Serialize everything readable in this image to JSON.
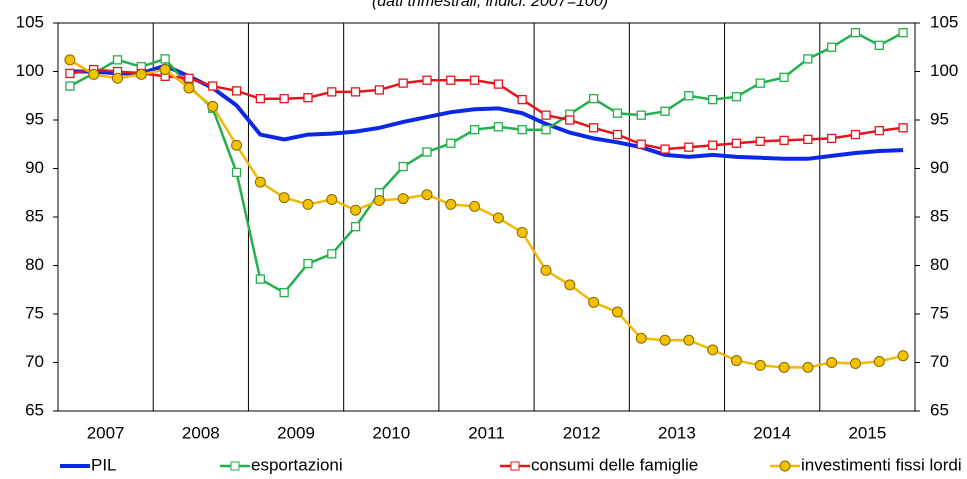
{
  "chart_data": {
    "type": "line",
    "subtitle": "(dati trimestrali; indici: 2007=100)",
    "categories": [
      null,
      "2007",
      null,
      null,
      null,
      "2008",
      null,
      null,
      null,
      "2009",
      null,
      null,
      null,
      "2010",
      null,
      null,
      null,
      "2011",
      null,
      null,
      null,
      "2012",
      null,
      null,
      null,
      "2013",
      null,
      null,
      null,
      "2014",
      null,
      null,
      null,
      "2015",
      null,
      null
    ],
    "ylim": [
      65,
      105
    ],
    "yticks": [
      65,
      70,
      75,
      80,
      85,
      90,
      95,
      100,
      105
    ],
    "y2lim": [
      65,
      105
    ],
    "y2ticks": [
      65,
      70,
      75,
      80,
      85,
      90,
      95,
      100,
      105
    ],
    "series": [
      {
        "name": "PIL",
        "color": "#0a28e6",
        "marker": "none",
        "values": [
          100.0,
          100.0,
          99.8,
          99.8,
          100.6,
          99.5,
          98.3,
          96.5,
          93.5,
          93.0,
          93.5,
          93.6,
          93.8,
          94.2,
          94.8,
          95.3,
          95.8,
          96.1,
          96.2,
          95.7,
          94.6,
          93.7,
          93.1,
          92.7,
          92.2,
          91.4,
          91.2,
          91.4,
          91.2,
          91.1,
          91.0,
          91.0,
          91.3,
          91.6,
          91.8,
          91.9
        ]
      },
      {
        "name": "esportazioni",
        "color": "#22b14c",
        "marker": "square",
        "values": [
          98.5,
          99.8,
          101.2,
          100.5,
          101.3,
          98.5,
          96.2,
          89.6,
          78.6,
          77.2,
          80.2,
          81.2,
          84.0,
          87.5,
          90.2,
          91.7,
          92.6,
          94.0,
          94.3,
          94.0,
          94.0,
          95.6,
          97.2,
          95.7,
          95.5,
          95.9,
          97.5,
          97.1,
          97.4,
          98.8,
          99.4,
          101.3,
          102.5,
          104.0,
          102.7,
          104.0
        ]
      },
      {
        "name": "consumi delle famiglie",
        "color": "#e8141c",
        "marker": "square",
        "values": [
          99.8,
          100.2,
          100.0,
          99.8,
          99.5,
          99.3,
          98.5,
          98.0,
          97.2,
          97.2,
          97.3,
          97.9,
          97.9,
          98.1,
          98.8,
          99.1,
          99.1,
          99.1,
          98.7,
          97.1,
          95.5,
          95.0,
          94.2,
          93.5,
          92.5,
          92.0,
          92.2,
          92.4,
          92.6,
          92.8,
          92.9,
          93.0,
          93.1,
          93.5,
          93.9,
          94.2
        ]
      },
      {
        "name": "investimenti fissi lordi",
        "color": "#f5b800",
        "marker": "circle",
        "values": [
          101.2,
          99.7,
          99.3,
          99.7,
          100.2,
          98.3,
          96.4,
          92.4,
          88.6,
          87.0,
          86.3,
          86.8,
          85.7,
          86.7,
          86.9,
          87.3,
          86.3,
          86.1,
          84.9,
          83.4,
          79.5,
          78.0,
          76.2,
          75.2,
          72.5,
          72.3,
          72.3,
          71.3,
          70.2,
          69.7,
          69.5,
          69.5,
          70.0,
          69.9,
          70.1,
          70.7
        ]
      }
    ]
  }
}
